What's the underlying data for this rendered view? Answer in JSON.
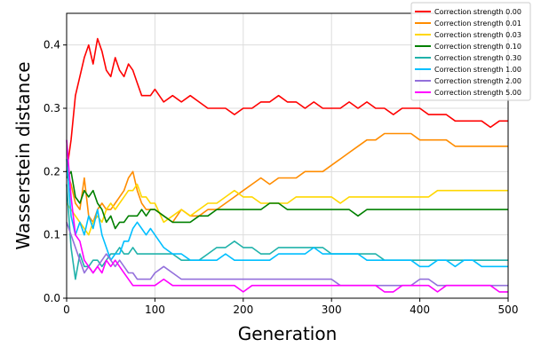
{
  "chart_data": {
    "type": "line",
    "title": "",
    "xlabel": "Generation",
    "ylabel": "Wasserstein distance",
    "xlim": [
      0,
      500
    ],
    "ylim": [
      0,
      0.45
    ],
    "xticks": [
      0,
      100,
      200,
      300,
      400,
      500
    ],
    "yticks": [
      0.0,
      0.1,
      0.2,
      0.3,
      0.4
    ],
    "ytick_labels": [
      "0.0",
      "0.1",
      "0.2",
      "0.3",
      "0.4"
    ],
    "grid": true,
    "legend_position": "top-right",
    "x": [
      0,
      5,
      10,
      15,
      20,
      25,
      30,
      35,
      40,
      45,
      50,
      55,
      60,
      65,
      70,
      75,
      80,
      85,
      90,
      95,
      100,
      110,
      120,
      130,
      140,
      150,
      160,
      170,
      180,
      190,
      200,
      210,
      220,
      230,
      240,
      250,
      260,
      270,
      280,
      290,
      300,
      310,
      320,
      330,
      340,
      350,
      360,
      370,
      380,
      390,
      400,
      410,
      420,
      430,
      440,
      450,
      460,
      470,
      480,
      490,
      500
    ],
    "series": [
      {
        "name": "Correction strength 0.00",
        "color": "#ff0000",
        "values": [
          0.2,
          0.25,
          0.32,
          0.35,
          0.38,
          0.4,
          0.37,
          0.41,
          0.39,
          0.36,
          0.35,
          0.38,
          0.36,
          0.35,
          0.37,
          0.36,
          0.34,
          0.32,
          0.32,
          0.32,
          0.33,
          0.31,
          0.32,
          0.31,
          0.32,
          0.31,
          0.3,
          0.3,
          0.3,
          0.29,
          0.3,
          0.3,
          0.31,
          0.31,
          0.32,
          0.31,
          0.31,
          0.3,
          0.31,
          0.3,
          0.3,
          0.3,
          0.31,
          0.3,
          0.31,
          0.3,
          0.3,
          0.29,
          0.3,
          0.3,
          0.3,
          0.29,
          0.29,
          0.29,
          0.28,
          0.28,
          0.28,
          0.28,
          0.27,
          0.28,
          0.28
        ]
      },
      {
        "name": "Correction strength 0.01",
        "color": "#ff8c00",
        "values": [
          0.2,
          0.18,
          0.15,
          0.14,
          0.19,
          0.13,
          0.12,
          0.14,
          0.15,
          0.14,
          0.14,
          0.15,
          0.16,
          0.17,
          0.19,
          0.2,
          0.17,
          0.15,
          0.14,
          0.14,
          0.14,
          0.13,
          0.12,
          0.14,
          0.13,
          0.13,
          0.14,
          0.14,
          0.15,
          0.16,
          0.17,
          0.18,
          0.19,
          0.18,
          0.19,
          0.19,
          0.19,
          0.2,
          0.2,
          0.2,
          0.21,
          0.22,
          0.23,
          0.24,
          0.25,
          0.25,
          0.26,
          0.26,
          0.26,
          0.26,
          0.25,
          0.25,
          0.25,
          0.25,
          0.24,
          0.24,
          0.24,
          0.24,
          0.24,
          0.24,
          0.24
        ]
      },
      {
        "name": "Correction strength 0.03",
        "color": "#ffd700",
        "values": [
          0.15,
          0.14,
          0.13,
          0.12,
          0.11,
          0.1,
          0.12,
          0.13,
          0.12,
          0.14,
          0.15,
          0.14,
          0.15,
          0.16,
          0.17,
          0.17,
          0.18,
          0.16,
          0.16,
          0.15,
          0.15,
          0.12,
          0.13,
          0.14,
          0.13,
          0.14,
          0.15,
          0.15,
          0.16,
          0.17,
          0.16,
          0.16,
          0.15,
          0.15,
          0.15,
          0.15,
          0.16,
          0.16,
          0.16,
          0.16,
          0.16,
          0.15,
          0.16,
          0.16,
          0.16,
          0.16,
          0.16,
          0.16,
          0.16,
          0.16,
          0.16,
          0.16,
          0.17,
          0.17,
          0.17,
          0.17,
          0.17,
          0.17,
          0.17,
          0.17,
          0.17
        ]
      },
      {
        "name": "Correction strength 0.10",
        "color": "#008000",
        "values": [
          0.19,
          0.2,
          0.16,
          0.15,
          0.17,
          0.16,
          0.17,
          0.15,
          0.14,
          0.12,
          0.13,
          0.11,
          0.12,
          0.12,
          0.13,
          0.13,
          0.13,
          0.14,
          0.13,
          0.14,
          0.14,
          0.13,
          0.12,
          0.12,
          0.12,
          0.13,
          0.13,
          0.14,
          0.14,
          0.14,
          0.14,
          0.14,
          0.14,
          0.15,
          0.15,
          0.14,
          0.14,
          0.14,
          0.14,
          0.14,
          0.14,
          0.14,
          0.14,
          0.13,
          0.14,
          0.14,
          0.14,
          0.14,
          0.14,
          0.14,
          0.14,
          0.14,
          0.14,
          0.14,
          0.14,
          0.14,
          0.14,
          0.14,
          0.14,
          0.14,
          0.14
        ]
      },
      {
        "name": "Correction strength 0.30",
        "color": "#20b2aa",
        "values": [
          0.18,
          0.08,
          0.03,
          0.07,
          0.05,
          0.05,
          0.06,
          0.06,
          0.05,
          0.06,
          0.07,
          0.07,
          0.08,
          0.07,
          0.07,
          0.08,
          0.07,
          0.07,
          0.07,
          0.07,
          0.07,
          0.07,
          0.07,
          0.06,
          0.06,
          0.06,
          0.07,
          0.08,
          0.08,
          0.09,
          0.08,
          0.08,
          0.07,
          0.07,
          0.08,
          0.08,
          0.08,
          0.08,
          0.08,
          0.08,
          0.07,
          0.07,
          0.07,
          0.07,
          0.07,
          0.07,
          0.06,
          0.06,
          0.06,
          0.06,
          0.06,
          0.06,
          0.06,
          0.06,
          0.06,
          0.06,
          0.06,
          0.06,
          0.06,
          0.06,
          0.06
        ]
      },
      {
        "name": "Correction strength 1.00",
        "color": "#00bfff",
        "values": [
          0.22,
          0.13,
          0.1,
          0.12,
          0.1,
          0.13,
          0.11,
          0.14,
          0.1,
          0.08,
          0.06,
          0.07,
          0.07,
          0.09,
          0.09,
          0.11,
          0.12,
          0.11,
          0.1,
          0.11,
          0.1,
          0.08,
          0.07,
          0.07,
          0.06,
          0.06,
          0.06,
          0.06,
          0.07,
          0.06,
          0.06,
          0.06,
          0.06,
          0.06,
          0.07,
          0.07,
          0.07,
          0.07,
          0.08,
          0.07,
          0.07,
          0.07,
          0.07,
          0.07,
          0.06,
          0.06,
          0.06,
          0.06,
          0.06,
          0.06,
          0.05,
          0.05,
          0.06,
          0.06,
          0.05,
          0.06,
          0.06,
          0.05,
          0.05,
          0.05,
          0.05
        ]
      },
      {
        "name": "Correction strength 2.00",
        "color": "#9370db",
        "values": [
          0.12,
          0.1,
          0.08,
          0.06,
          0.04,
          0.05,
          0.04,
          0.05,
          0.06,
          0.07,
          0.06,
          0.05,
          0.06,
          0.05,
          0.04,
          0.04,
          0.03,
          0.03,
          0.03,
          0.03,
          0.04,
          0.05,
          0.04,
          0.03,
          0.03,
          0.03,
          0.03,
          0.03,
          0.03,
          0.03,
          0.03,
          0.03,
          0.03,
          0.03,
          0.03,
          0.03,
          0.03,
          0.03,
          0.03,
          0.03,
          0.03,
          0.02,
          0.02,
          0.02,
          0.02,
          0.02,
          0.02,
          0.02,
          0.02,
          0.02,
          0.03,
          0.03,
          0.02,
          0.02,
          0.02,
          0.02,
          0.02,
          0.02,
          0.02,
          0.02,
          0.02
        ]
      },
      {
        "name": "Correction strength 5.00",
        "color": "#ff00ff",
        "values": [
          0.25,
          0.16,
          0.1,
          0.09,
          0.06,
          0.05,
          0.04,
          0.05,
          0.04,
          0.06,
          0.05,
          0.06,
          0.05,
          0.04,
          0.03,
          0.02,
          0.02,
          0.02,
          0.02,
          0.02,
          0.02,
          0.03,
          0.02,
          0.02,
          0.02,
          0.02,
          0.02,
          0.02,
          0.02,
          0.02,
          0.01,
          0.02,
          0.02,
          0.02,
          0.02,
          0.02,
          0.02,
          0.02,
          0.02,
          0.02,
          0.02,
          0.02,
          0.02,
          0.02,
          0.02,
          0.02,
          0.01,
          0.01,
          0.02,
          0.02,
          0.02,
          0.02,
          0.01,
          0.02,
          0.02,
          0.02,
          0.02,
          0.02,
          0.02,
          0.01,
          0.01
        ]
      }
    ]
  }
}
